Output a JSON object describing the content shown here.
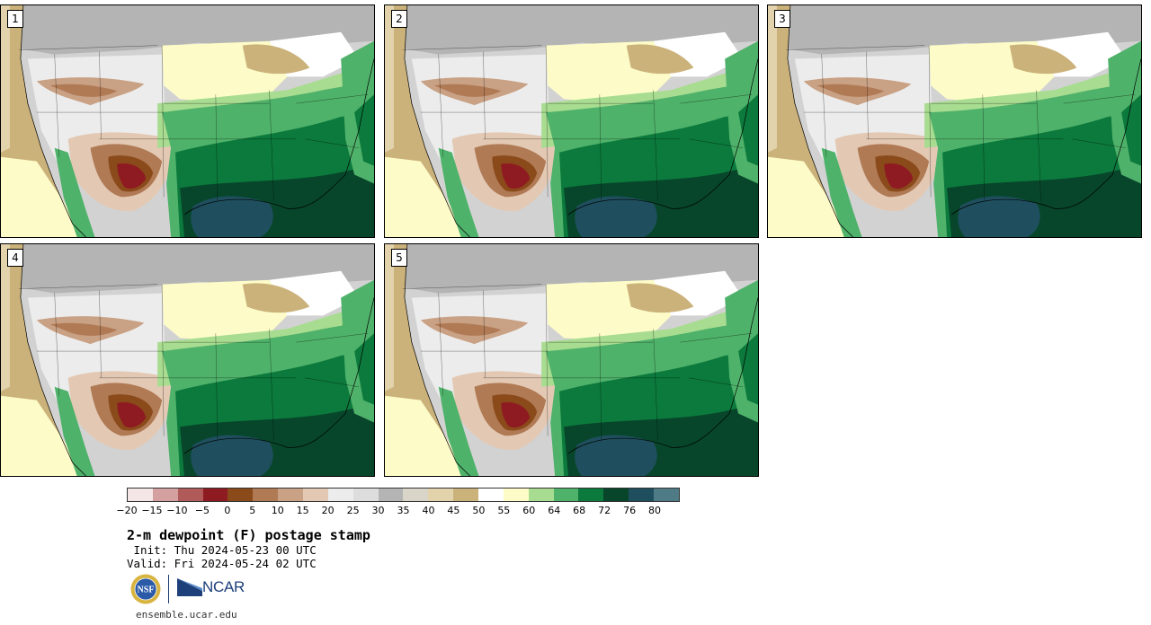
{
  "panels": [
    {
      "label": "1"
    },
    {
      "label": "2"
    },
    {
      "label": "3"
    },
    {
      "label": "4"
    },
    {
      "label": "5"
    }
  ],
  "colorbar": {
    "colors": [
      "#f4e6e6",
      "#d4a0a0",
      "#b05a5a",
      "#8e1b22",
      "#8b4a1a",
      "#b07a55",
      "#c9a184",
      "#e3c9b4",
      "#ececec",
      "#dddddd",
      "#b4b4b4",
      "#d9d5c8",
      "#e3d3ad",
      "#cbb27a",
      "#ffffff",
      "#fdfcc8",
      "#a8dc90",
      "#4fb26a",
      "#0b7a3c",
      "#07462b",
      "#1f4f5e",
      "#4e7b85"
    ],
    "ticks": [
      "-20",
      "-15",
      "-10",
      "-5",
      "0",
      "5",
      "10",
      "15",
      "20",
      "25",
      "30",
      "35",
      "40",
      "45",
      "50",
      "55",
      "60",
      "64",
      "68",
      "72",
      "76",
      "80"
    ]
  },
  "title": "2-m dewpoint (F) postage stamp",
  "init": " Init: Thu 2024-05-23 00 UTC",
  "valid": "Valid: Fri 2024-05-24 02 UTC",
  "logos": {
    "nsf": "NSF",
    "ncar": "NCAR"
  },
  "url": "ensemble.ucar.edu"
}
